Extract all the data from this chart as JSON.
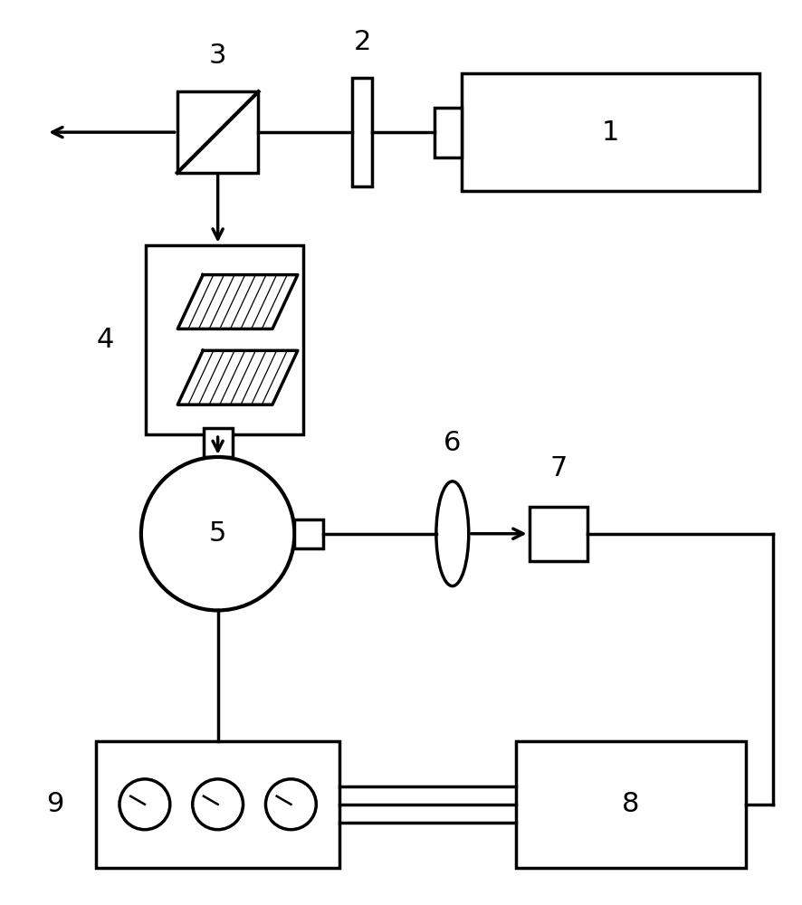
{
  "background_color": "#ffffff",
  "line_color": "#000000",
  "line_width": 2.5,
  "label_fontsize": 22
}
